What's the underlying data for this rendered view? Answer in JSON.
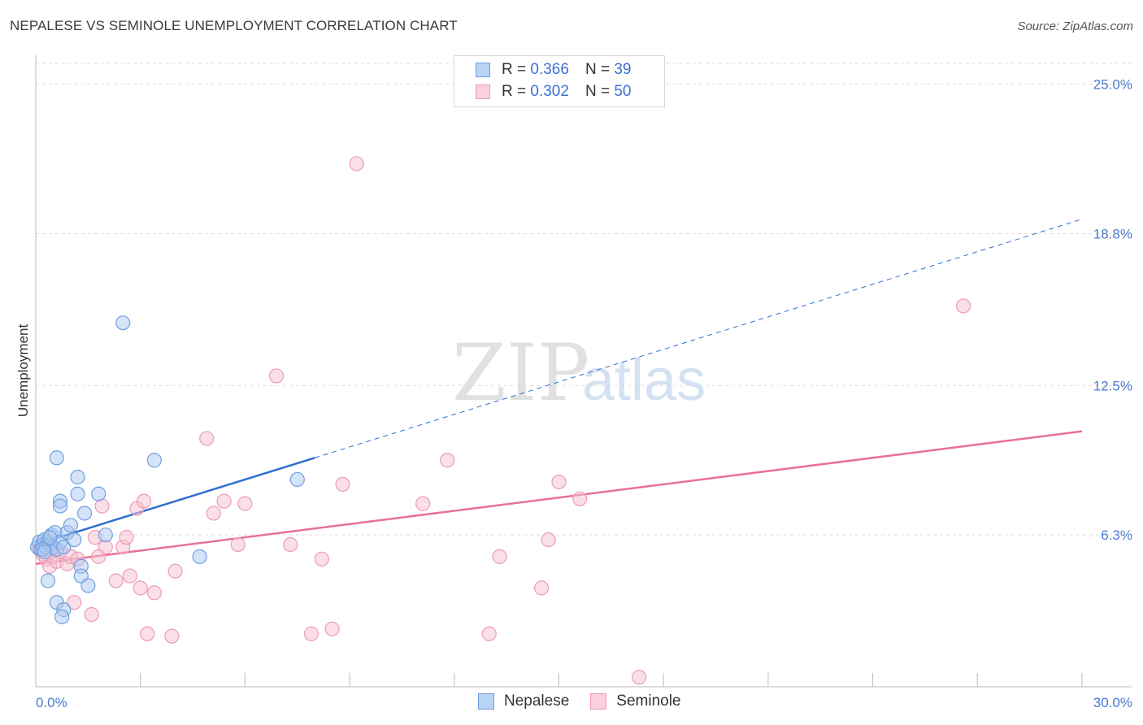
{
  "title": "NEPALESE VS SEMINOLE UNEMPLOYMENT CORRELATION CHART",
  "source": "Source: ZipAtlas.com",
  "watermark": {
    "zip": "ZIP",
    "atlas": "atlas"
  },
  "legend": [
    {
      "r_label": "R =",
      "r_value": "0.366",
      "n_label": "N =",
      "n_value": "39"
    },
    {
      "r_label": "R =",
      "r_value": "0.302",
      "n_label": "N =",
      "n_value": "50"
    }
  ],
  "colors": {
    "nepalese_fill": "#a9c8f0",
    "nepalese_stroke": "#6f9fe0",
    "nepalese_line": "#2f6fd0",
    "seminole_fill": "#f7c0d0",
    "seminole_stroke": "#ec9cb4",
    "seminole_line": "#e8709a",
    "grid": "#dddddd",
    "tick_text": "#4a7bd0"
  },
  "chart_data": {
    "type": "scatter",
    "title": "NEPALESE VS SEMINOLE UNEMPLOYMENT CORRELATION CHART",
    "xlabel": "",
    "ylabel": "Unemployment",
    "xlim": [
      0,
      30
    ],
    "ylim": [
      0,
      26.2
    ],
    "y_ticks": [
      6.3,
      12.5,
      18.8,
      25.0
    ],
    "y_tick_labels": [
      "6.3%",
      "12.5%",
      "18.8%",
      "25.0%"
    ],
    "x_tick_labels": [
      "0.0%",
      "30.0%"
    ],
    "series": [
      {
        "name": "Nepalese",
        "R": 0.366,
        "N": 39,
        "trend": {
          "x0": 0,
          "y0": 5.9,
          "x1": 8,
          "y1": 9.5,
          "dashed_to_x": 30,
          "dashed_to_y": 19.4
        },
        "points": [
          [
            0.05,
            5.8
          ],
          [
            0.1,
            6.0
          ],
          [
            0.15,
            5.7
          ],
          [
            0.2,
            5.9
          ],
          [
            0.25,
            6.1
          ],
          [
            0.3,
            5.8
          ],
          [
            0.35,
            6.0
          ],
          [
            0.4,
            5.9
          ],
          [
            0.45,
            6.3
          ],
          [
            0.5,
            5.8
          ],
          [
            0.55,
            6.4
          ],
          [
            0.6,
            5.7
          ],
          [
            0.7,
            6.0
          ],
          [
            0.8,
            5.8
          ],
          [
            0.9,
            6.4
          ],
          [
            1.0,
            6.7
          ],
          [
            1.1,
            6.1
          ],
          [
            0.35,
            4.4
          ],
          [
            0.6,
            9.5
          ],
          [
            0.7,
            7.7
          ],
          [
            0.7,
            7.5
          ],
          [
            1.2,
            8.7
          ],
          [
            1.2,
            8.0
          ],
          [
            1.4,
            7.2
          ],
          [
            1.3,
            5.0
          ],
          [
            1.3,
            4.6
          ],
          [
            1.5,
            4.2
          ],
          [
            0.6,
            3.5
          ],
          [
            0.8,
            3.2
          ],
          [
            0.75,
            2.9
          ],
          [
            1.8,
            8.0
          ],
          [
            2.5,
            15.1
          ],
          [
            3.4,
            9.4
          ],
          [
            2.0,
            6.3
          ],
          [
            4.7,
            5.4
          ],
          [
            7.5,
            8.6
          ],
          [
            0.2,
            5.7
          ],
          [
            0.4,
            6.2
          ],
          [
            0.25,
            5.6
          ]
        ]
      },
      {
        "name": "Seminole",
        "R": 0.302,
        "N": 50,
        "trend": {
          "x0": 0,
          "y0": 5.1,
          "x1": 30,
          "y1": 10.6
        },
        "points": [
          [
            0.1,
            5.7
          ],
          [
            0.2,
            5.5
          ],
          [
            0.3,
            5.3
          ],
          [
            0.4,
            5.0
          ],
          [
            0.5,
            5.4
          ],
          [
            0.6,
            5.2
          ],
          [
            0.7,
            5.6
          ],
          [
            0.9,
            5.1
          ],
          [
            1.0,
            5.4
          ],
          [
            1.2,
            5.3
          ],
          [
            1.1,
            3.5
          ],
          [
            1.6,
            3.0
          ],
          [
            1.7,
            6.2
          ],
          [
            1.8,
            5.4
          ],
          [
            1.9,
            7.5
          ],
          [
            2.0,
            5.8
          ],
          [
            2.3,
            4.4
          ],
          [
            2.5,
            5.8
          ],
          [
            2.6,
            6.2
          ],
          [
            2.7,
            4.6
          ],
          [
            2.9,
            7.4
          ],
          [
            3.1,
            7.7
          ],
          [
            3.0,
            4.1
          ],
          [
            3.2,
            2.2
          ],
          [
            3.4,
            3.9
          ],
          [
            3.9,
            2.1
          ],
          [
            4.0,
            4.8
          ],
          [
            4.9,
            10.3
          ],
          [
            5.1,
            7.2
          ],
          [
            5.4,
            7.7
          ],
          [
            5.8,
            5.9
          ],
          [
            6.0,
            7.6
          ],
          [
            6.9,
            12.9
          ],
          [
            7.3,
            5.9
          ],
          [
            7.9,
            2.2
          ],
          [
            8.2,
            5.3
          ],
          [
            8.5,
            2.4
          ],
          [
            8.8,
            8.4
          ],
          [
            9.2,
            21.7
          ],
          [
            11.1,
            7.6
          ],
          [
            11.8,
            9.4
          ],
          [
            13.0,
            2.2
          ],
          [
            13.3,
            5.4
          ],
          [
            14.5,
            4.1
          ],
          [
            14.7,
            6.1
          ],
          [
            15.0,
            8.5
          ],
          [
            15.6,
            7.8
          ],
          [
            17.3,
            0.4
          ],
          [
            26.6,
            15.8
          ],
          [
            0.35,
            5.9
          ]
        ]
      }
    ]
  }
}
